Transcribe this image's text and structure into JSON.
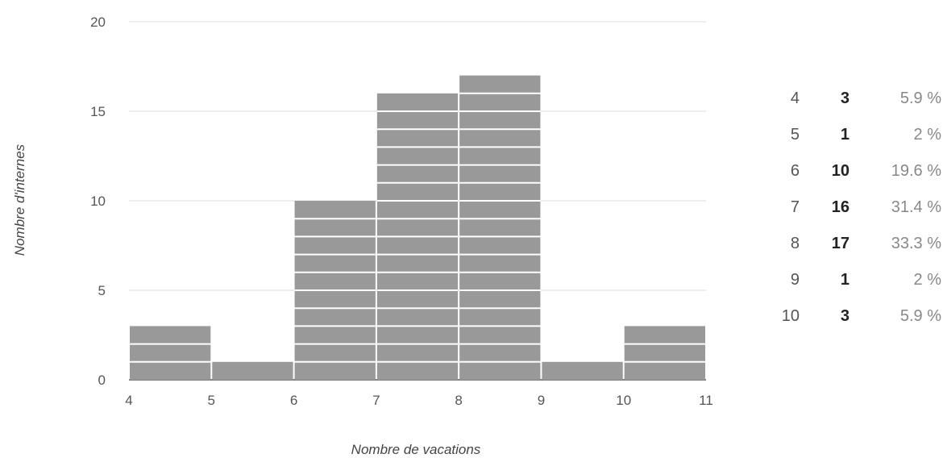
{
  "chart_data": {
    "type": "bar",
    "subtype": "histogram",
    "bin_edges": [
      4,
      5,
      6,
      7,
      8,
      9,
      10,
      11
    ],
    "values": [
      3,
      1,
      10,
      16,
      17,
      1,
      3
    ],
    "xlabel": "Nombre de vacations",
    "ylabel": "Nombre d'internes",
    "x_ticks": [
      4,
      5,
      6,
      7,
      8,
      9,
      10,
      11
    ],
    "y_ticks": [
      0,
      5,
      10,
      15,
      20
    ],
    "xlim": [
      4,
      11
    ],
    "ylim": [
      0,
      20
    ],
    "grid": "horizontal",
    "legend": "none",
    "bar_color": "#999999",
    "unit_line_color": "#ffffff"
  },
  "frequency_table": {
    "rows": [
      {
        "value": "4",
        "count": "3",
        "percent": "5.9 %"
      },
      {
        "value": "5",
        "count": "1",
        "percent": "2 %"
      },
      {
        "value": "6",
        "count": "10",
        "percent": "19.6 %"
      },
      {
        "value": "7",
        "count": "16",
        "percent": "31.4 %"
      },
      {
        "value": "8",
        "count": "17",
        "percent": "33.3 %"
      },
      {
        "value": "9",
        "count": "1",
        "percent": "2 %"
      },
      {
        "value": "10",
        "count": "3",
        "percent": "5.9 %"
      }
    ]
  }
}
